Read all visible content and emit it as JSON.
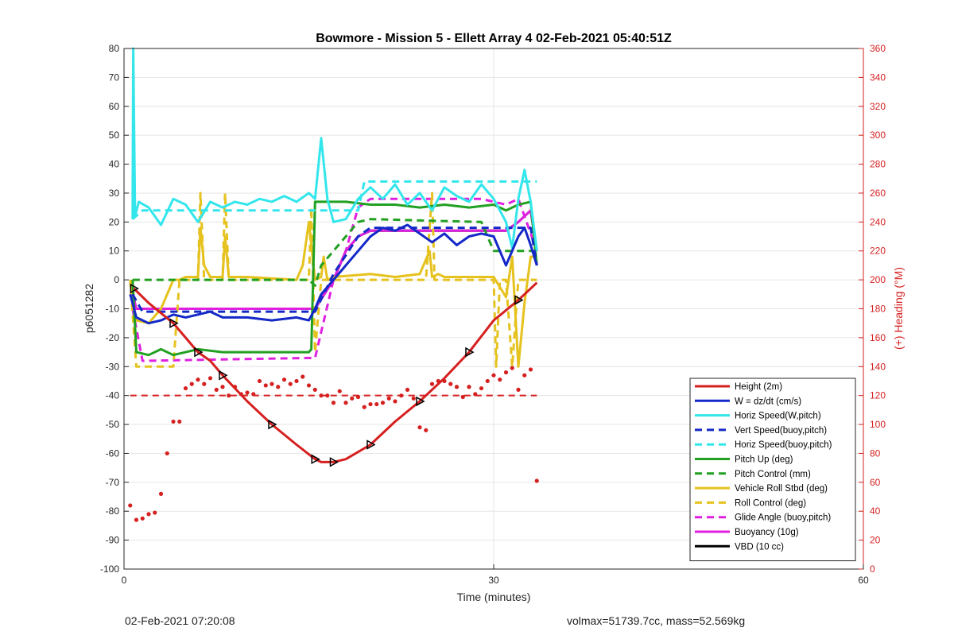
{
  "chart_data": {
    "type": "line",
    "title": "Bowmore - Mission 5 - Ellett Array 4 02-Feb-2021 05:40:51Z",
    "xlabel": "Time (minutes)",
    "ylabel": "p6051282",
    "y2label": "(+) Heading (°M)",
    "xlim": [
      0,
      60
    ],
    "ylim": [
      -100,
      80
    ],
    "y2lim": [
      0,
      360
    ],
    "xticks": [
      0,
      30,
      60
    ],
    "yticks": [
      -100,
      -90,
      -80,
      -70,
      -60,
      -50,
      -40,
      -30,
      -20,
      -10,
      0,
      10,
      20,
      30,
      40,
      50,
      60,
      70,
      80
    ],
    "y2ticks": [
      0,
      20,
      40,
      60,
      80,
      100,
      120,
      140,
      160,
      180,
      200,
      220,
      240,
      260,
      280,
      300,
      320,
      340,
      360
    ],
    "grid": true,
    "legend_position": "bottom-right",
    "series": [
      {
        "name": "Height (2m)",
        "color": "#d62020",
        "style": "solid",
        "marker": "triangle",
        "x": [
          0.8,
          2,
          4,
          5,
          6,
          7,
          8,
          10,
          12,
          14,
          15.5,
          16,
          17,
          18,
          20,
          22,
          24,
          26,
          28,
          30,
          32,
          33.5
        ],
        "y": [
          -3,
          -8,
          -15,
          -20,
          -25,
          -28,
          -33,
          -42,
          -50,
          -57,
          -62,
          -63,
          -63,
          -62,
          -57,
          -49,
          -42,
          -34,
          -25,
          -14,
          -7,
          -1
        ]
      },
      {
        "name": "W = dz/dt (cm/s)",
        "color": "#1428c8",
        "style": "solid",
        "x": [
          0.5,
          1,
          2,
          3,
          4,
          5,
          6,
          7,
          8,
          10,
          12,
          14,
          15,
          15.5,
          16,
          17,
          18,
          19,
          20,
          21,
          22,
          23,
          24,
          25,
          26,
          27,
          28,
          29,
          30,
          31,
          32,
          32.5,
          33,
          33.5
        ],
        "y": [
          -5,
          -13,
          -15,
          -14,
          -12,
          -13,
          -12,
          -11,
          -13,
          -13,
          -14,
          -13,
          -14,
          -10,
          -5,
          0,
          5,
          10,
          15,
          18,
          17,
          19,
          16,
          13,
          16,
          12,
          15,
          16,
          15,
          5,
          15,
          18,
          12,
          5
        ]
      },
      {
        "name": "Horiz Speed(W,pitch)",
        "color": "#33e6ec",
        "style": "solid",
        "x": [
          0.7,
          0.75,
          0.9,
          1.2,
          2,
          3,
          4,
          5,
          6,
          7,
          8,
          9,
          10,
          11,
          12,
          13,
          14,
          15,
          15.5,
          16,
          16.5,
          17,
          18,
          19,
          20,
          21,
          22,
          23,
          24,
          25,
          26,
          27,
          28,
          29,
          30,
          31,
          31.5,
          32,
          32.5,
          33,
          33.5
        ],
        "y": [
          21,
          80,
          22,
          27,
          25,
          19,
          28,
          26,
          20,
          27,
          25,
          27,
          26,
          28,
          27,
          29,
          27,
          30,
          28,
          49,
          28,
          20,
          21,
          28,
          32,
          28,
          33,
          26,
          30,
          24,
          32,
          29,
          27,
          33,
          28,
          20,
          11,
          28,
          38,
          27,
          10
        ]
      },
      {
        "name": "Vert Speed(buoy,pitch)",
        "color": "#1428c8",
        "style": "dash",
        "x": [
          0.7,
          1.5,
          4,
          15,
          15.5,
          17,
          19,
          20,
          29,
          30,
          32,
          33,
          33.5
        ],
        "y": [
          -5,
          -11,
          -11,
          -11,
          -11,
          2,
          15,
          18,
          18,
          18,
          18,
          18,
          5
        ]
      },
      {
        "name": "Horiz Speed(buoy,pitch)",
        "color": "#33e6ec",
        "style": "dash",
        "x": [
          0.7,
          1.5,
          15,
          15.5,
          19,
          19.5,
          29,
          30,
          31,
          32,
          33.5
        ],
        "y": [
          21,
          24,
          24,
          24,
          24,
          34,
          34,
          34,
          34,
          34,
          34
        ]
      },
      {
        "name": "Pitch Up (deg)",
        "color": "#22a022",
        "style": "solid",
        "x": [
          0.7,
          1,
          2,
          3,
          4,
          5,
          6,
          8,
          10,
          12,
          14,
          15,
          15.2,
          15.5,
          16,
          17,
          18,
          20,
          22,
          24,
          26,
          28,
          30,
          31,
          32,
          33,
          33.5
        ],
        "y": [
          0,
          -25,
          -26,
          -24,
          -26,
          -25,
          -24,
          -25,
          -25,
          -25,
          -25,
          -25,
          -24,
          27,
          27,
          27,
          27,
          26,
          26,
          25,
          26,
          25,
          26,
          24,
          26,
          27,
          5
        ]
      },
      {
        "name": "Pitch Control (mm)",
        "color": "#22a022",
        "style": "dash",
        "x": [
          0.7,
          15,
          15.5,
          16,
          17,
          18,
          19,
          20,
          29,
          30,
          32,
          33.5
        ],
        "y": [
          0,
          0,
          -2,
          5,
          10,
          15,
          20,
          21,
          20,
          10,
          10,
          10
        ]
      },
      {
        "name": "Vehicle Roll Stbd (deg)",
        "color": "#e6c21e",
        "style": "solid",
        "x": [
          0.5,
          0.8,
          1,
          2,
          3,
          4,
          4.5,
          5,
          6,
          6.2,
          6.5,
          7,
          8,
          8.2,
          8.5,
          9,
          10,
          14,
          14.5,
          15,
          15.5,
          16,
          16.2,
          16.5,
          17,
          20,
          22,
          24,
          24.8,
          25,
          25.5,
          26,
          28,
          30,
          31,
          31.5,
          32,
          32.5,
          33,
          33.5
        ],
        "y": [
          0,
          -10,
          -14,
          -15,
          -10,
          0,
          0,
          1,
          1,
          18,
          5,
          1,
          1,
          15,
          1,
          1,
          1,
          0,
          5,
          20,
          0,
          1,
          8,
          0,
          1,
          2,
          1,
          2,
          10,
          1,
          2,
          1,
          1,
          1,
          -6,
          8,
          -30,
          -8,
          8,
          8
        ]
      },
      {
        "name": "Roll Control (deg)",
        "color": "#e6c21e",
        "style": "dash",
        "x": [
          0.5,
          1,
          2,
          4,
          4.5,
          5,
          6,
          6.2,
          6.5,
          8,
          8.2,
          8.5,
          15,
          15.2,
          15.5,
          16,
          24.5,
          25,
          25.2,
          26,
          30,
          30.2,
          30.5,
          31,
          31.5,
          32,
          33.5
        ],
        "y": [
          0,
          -30,
          -30,
          -30,
          0,
          0,
          0,
          30,
          0,
          0,
          30,
          0,
          0,
          25,
          -25,
          0,
          0,
          30,
          0,
          0,
          0,
          -30,
          0,
          0,
          -30,
          0,
          0
        ]
      },
      {
        "name": "Glide Angle (buoy,pitch)",
        "color": "#e020e0",
        "style": "dash",
        "x": [
          0.7,
          1.5,
          15,
          15.5,
          17,
          18,
          19,
          20,
          29,
          30,
          31,
          32,
          33.5
        ],
        "y": [
          -10,
          -28,
          -27,
          -27,
          0,
          10,
          25,
          28,
          28,
          27,
          26,
          28,
          10
        ]
      },
      {
        "name": "Buoyancy (10g)",
        "color": "#e020e0",
        "style": "solid",
        "x": [
          0.7,
          1,
          15,
          15.5,
          17,
          18,
          19,
          20,
          29,
          30,
          31,
          32,
          33,
          33.5
        ],
        "y": [
          -5,
          -10,
          -10,
          -10,
          0,
          10,
          15,
          17,
          17,
          17,
          17,
          20,
          24,
          10
        ]
      },
      {
        "name": "VBD (10 cc)",
        "color": "#000000",
        "style": "solid",
        "x": [
          0.7,
          1,
          15,
          15.5,
          17,
          18,
          19,
          20,
          29,
          30,
          31,
          32,
          33,
          33.5
        ],
        "y": [
          -5,
          -10,
          -10,
          -10,
          0,
          10,
          15,
          17,
          17,
          17,
          17,
          20,
          24,
          10
        ]
      }
    ],
    "heading_reference": {
      "axis": "right",
      "value": 120,
      "color": "#d62020",
      "style": "dash",
      "x": [
        0.5,
        33.5
      ]
    },
    "heading_points": {
      "axis": "right",
      "color": "#d62020",
      "x": [
        0.5,
        1,
        1.5,
        2,
        2.5,
        3,
        3.5,
        4,
        4.5,
        5,
        5.5,
        6,
        6.5,
        7,
        7.5,
        8,
        8.5,
        9,
        9.5,
        10,
        10.5,
        11,
        11.5,
        12,
        12.5,
        13,
        13.5,
        14,
        14.5,
        15,
        15.5,
        16,
        16.5,
        17,
        17.5,
        18,
        18.5,
        19,
        19.5,
        20,
        20.5,
        21,
        21.5,
        22,
        22.5,
        23,
        23.5,
        24,
        24.5,
        25,
        25.5,
        26,
        26.5,
        27,
        27.5,
        28,
        28.5,
        29,
        29.5,
        30,
        30.5,
        31,
        31.5,
        32,
        32.5,
        33,
        33.5
      ],
      "y": [
        44,
        34,
        35,
        38,
        39,
        52,
        80,
        102,
        102,
        125,
        128,
        131,
        128,
        132,
        124,
        126,
        120,
        126,
        121,
        122,
        121,
        130,
        127,
        128,
        126,
        131,
        128,
        130,
        133,
        127,
        124,
        120,
        120,
        115,
        123,
        115,
        118,
        119,
        112,
        114,
        114,
        115,
        118,
        116,
        120,
        124,
        118,
        98,
        96,
        128,
        130,
        130,
        128,
        126,
        119,
        126,
        121,
        125,
        130,
        134,
        131,
        136,
        139,
        124,
        134,
        138,
        61
      ]
    }
  },
  "footer": {
    "left": "02-Feb-2021 07:20:08",
    "right": "volmax=51739.7cc, mass=52.569kg"
  }
}
